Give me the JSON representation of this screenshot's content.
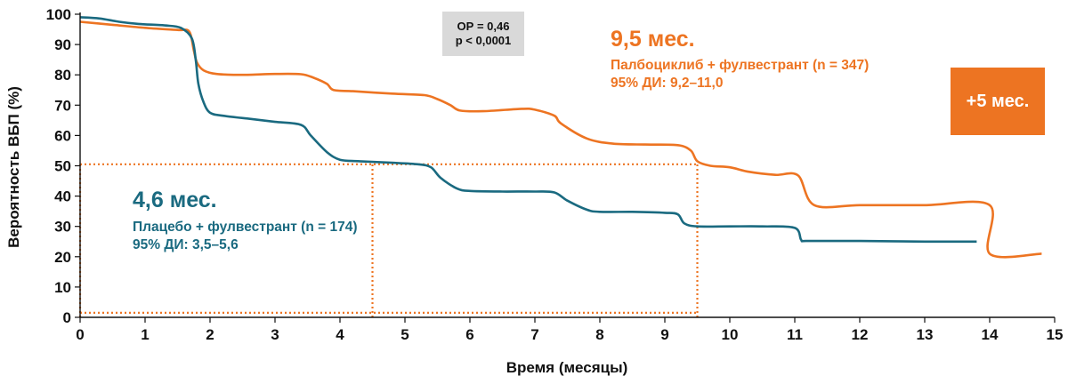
{
  "chart_data": {
    "type": "line",
    "xlabel": "Время (месяцы)",
    "ylabel": "Вероятность ВБП (%)",
    "xlim": [
      0,
      15
    ],
    "ylim": [
      0,
      100
    ],
    "x_ticks": [
      "0",
      "1",
      "2",
      "3",
      "4",
      "5",
      "6",
      "7",
      "8",
      "9",
      "10",
      "11",
      "12",
      "13",
      "14",
      "15"
    ],
    "y_ticks": [
      "0",
      "10",
      "20",
      "30",
      "40",
      "50",
      "60",
      "70",
      "80",
      "90",
      "100"
    ],
    "grid": false,
    "series": [
      {
        "name": "Палбоциклиб + фулвестрант (n = 347)",
        "color": "#ed7422",
        "points": [
          [
            0,
            97.5
          ],
          [
            0.5,
            96.5
          ],
          [
            1.0,
            95.5
          ],
          [
            1.5,
            94.8
          ],
          [
            1.68,
            94.3
          ],
          [
            1.75,
            88
          ],
          [
            1.8,
            84
          ],
          [
            1.9,
            81.5
          ],
          [
            2.1,
            80.3
          ],
          [
            2.5,
            80
          ],
          [
            3.0,
            80.3
          ],
          [
            3.4,
            80.2
          ],
          [
            3.6,
            79
          ],
          [
            3.8,
            77
          ],
          [
            3.9,
            75
          ],
          [
            4.2,
            74.6
          ],
          [
            4.8,
            73.8
          ],
          [
            5.3,
            73.3
          ],
          [
            5.5,
            72
          ],
          [
            5.7,
            70
          ],
          [
            5.85,
            68.2
          ],
          [
            6.2,
            68
          ],
          [
            6.8,
            68.8
          ],
          [
            7.0,
            68.5
          ],
          [
            7.3,
            66.5
          ],
          [
            7.4,
            64
          ],
          [
            7.8,
            59
          ],
          [
            8.2,
            57.3
          ],
          [
            8.7,
            57
          ],
          [
            9.2,
            56.8
          ],
          [
            9.4,
            55
          ],
          [
            9.5,
            51.5
          ],
          [
            9.7,
            50
          ],
          [
            10.0,
            49.5
          ],
          [
            10.3,
            48
          ],
          [
            10.7,
            47
          ],
          [
            11.05,
            46.8
          ],
          [
            11.3,
            37
          ],
          [
            12.0,
            37
          ],
          [
            13.0,
            37
          ],
          [
            14.0,
            37
          ],
          [
            14.0,
            21
          ],
          [
            14.8,
            21
          ]
        ]
      },
      {
        "name": "Плацебо + фулвестрант (n = 174)",
        "color": "#1a6a80",
        "points": [
          [
            0,
            99
          ],
          [
            0.3,
            98.6
          ],
          [
            0.6,
            97.5
          ],
          [
            0.9,
            96.8
          ],
          [
            1.3,
            96.3
          ],
          [
            1.55,
            95.5
          ],
          [
            1.72,
            92
          ],
          [
            1.78,
            85
          ],
          [
            1.82,
            77
          ],
          [
            1.9,
            71
          ],
          [
            2.0,
            67.5
          ],
          [
            2.2,
            66.5
          ],
          [
            2.6,
            65.5
          ],
          [
            3.0,
            64.5
          ],
          [
            3.4,
            63.5
          ],
          [
            3.55,
            60
          ],
          [
            3.8,
            54.5
          ],
          [
            4.0,
            52
          ],
          [
            4.3,
            51.5
          ],
          [
            4.8,
            51
          ],
          [
            5.2,
            50.5
          ],
          [
            5.4,
            49.5
          ],
          [
            5.55,
            46
          ],
          [
            5.8,
            42.5
          ],
          [
            6.0,
            41.7
          ],
          [
            6.5,
            41.5
          ],
          [
            7.0,
            41.5
          ],
          [
            7.3,
            41.2
          ],
          [
            7.5,
            38.5
          ],
          [
            7.8,
            35.5
          ],
          [
            8.0,
            34.8
          ],
          [
            8.5,
            34.8
          ],
          [
            9.0,
            34.5
          ],
          [
            9.2,
            34
          ],
          [
            9.3,
            31
          ],
          [
            9.5,
            30
          ],
          [
            10.0,
            30
          ],
          [
            10.5,
            30
          ],
          [
            11.0,
            29.5
          ],
          [
            11.1,
            25.5
          ],
          [
            11.2,
            25.2
          ],
          [
            12.0,
            25.2
          ],
          [
            13.0,
            25
          ],
          [
            13.8,
            25
          ]
        ]
      }
    ],
    "reference_lines": [
      {
        "y": 50.5,
        "x_end": 9.5,
        "color": "#ed7422",
        "style": "dotted"
      },
      {
        "x": 4.5,
        "y_end": 50.5,
        "color": "#ed7422",
        "style": "dotted"
      },
      {
        "x": 9.5,
        "y_end": 50.5,
        "color": "#ed7422",
        "style": "dotted"
      },
      {
        "x": 0,
        "y_end": 50.5,
        "color": "#ed7422",
        "style": "dotted"
      },
      {
        "y": 1.5,
        "x_end": 9.5,
        "color": "#ed7422",
        "style": "dotted"
      }
    ]
  },
  "stats": {
    "hr": "ОР = 0,46",
    "p": "p < 0,0001"
  },
  "annotations": {
    "orange": {
      "median": "9,5 мес.",
      "arm": "Палбоциклиб + фулвестрант (n = 347)",
      "ci": "95% ДИ: 9,2–11,0"
    },
    "teal": {
      "median": "4,6 мес.",
      "arm": "Плацебо + фулвестрант (n = 174)",
      "ci": "95% ДИ: 3,5–5,6"
    },
    "gain": "+5 мес."
  },
  "colors": {
    "orange": "#ed7422",
    "teal": "#1a6a80"
  }
}
